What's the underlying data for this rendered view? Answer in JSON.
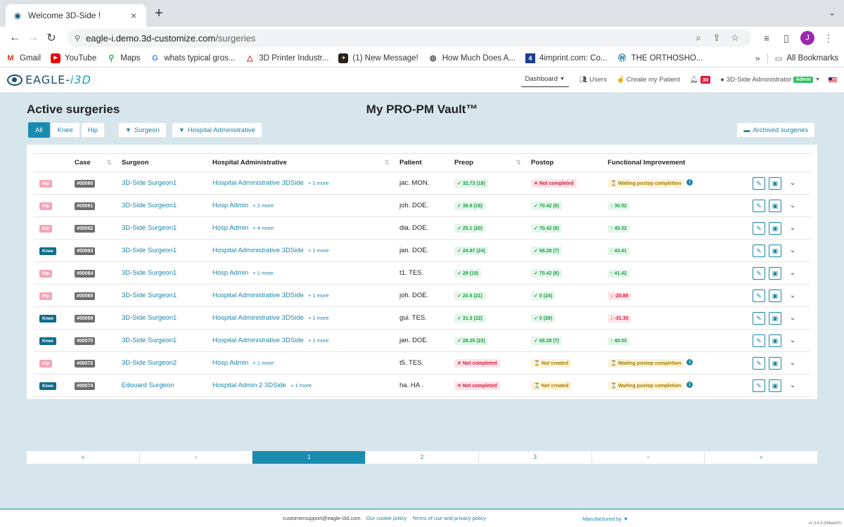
{
  "browser": {
    "tab_title": "Welcome 3D-Side !",
    "url_host": "eagle-i.demo.3d-customize.com",
    "url_path": "/surgeries",
    "profile_initial": "J",
    "bookmarks": [
      {
        "label": "Gmail",
        "icon": "gmail-icon"
      },
      {
        "label": "YouTube",
        "icon": "youtube-icon"
      },
      {
        "label": "Maps",
        "icon": "maps-icon"
      },
      {
        "label": "whats typical gros...",
        "icon": "google-icon"
      },
      {
        "label": "3D Printer Industr...",
        "icon": "printer-icon"
      },
      {
        "label": "(1) New Message!",
        "icon": "message-icon"
      },
      {
        "label": "How Much Does A...",
        "icon": "globe-icon"
      },
      {
        "label": "4imprint.com: Co...",
        "icon": "4imprint-icon"
      },
      {
        "label": "THE ORTHOSHO...",
        "icon": "wordpress-icon"
      }
    ],
    "more_bookmarks": "»",
    "all_bookmarks": "All Bookmarks"
  },
  "header": {
    "logo_text_a": "EAGLE-",
    "logo_text_b": "i3D",
    "nav": {
      "dashboard": "Dashboard",
      "users": "Users",
      "create_patient": "Create my Patient",
      "notifications": "30",
      "account": "3D-Side Administrator",
      "role": "Admin"
    }
  },
  "page": {
    "title": "Active surgeries",
    "vault_title": "My PRO-PM Vault™",
    "filters": {
      "all": "All",
      "knee": "Knee",
      "hip": "Hip",
      "surgeon": "Surgeon",
      "hospital": "Hospital Administrative"
    },
    "archived": "Archived surgeries"
  },
  "table": {
    "headers": {
      "case": "Case",
      "surgeon": "Surgeon",
      "hospital": "Hospital Administrative",
      "patient": "Patient",
      "preop": "Preop",
      "postop": "Postop",
      "improvement": "Functional Improvement"
    },
    "rows": [
      {
        "type": "Hip",
        "case": "#00060",
        "surgeon": "3D-Side Surgeon1",
        "hospital": "Hospital Administrative 3DSide",
        "more": "+ 1 more",
        "patient": "jac. MON.",
        "preop": "32.73 (18)",
        "preop_s": "ok",
        "postop": "Not completed",
        "postop_s": "bad",
        "improvement": "Waiting postop completion",
        "imp_s": "warn"
      },
      {
        "type": "Hip",
        "case": "#00061",
        "surgeon": "3D-Side Surgeon1",
        "hospital": "Hosp Admin",
        "more": "+ 2 more",
        "patient": "joh. DOE.",
        "preop": "39.9 (16)",
        "preop_s": "ok",
        "postop": "70.42 (6)",
        "postop_s": "ok",
        "improvement": "30.52",
        "imp_s": "up"
      },
      {
        "type": "Hip",
        "case": "#00062",
        "surgeon": "3D-Side Surgeon1",
        "hospital": "Hosp Admin",
        "more": "+ 4 more",
        "patient": "dia. DOE.",
        "preop": "25.1 (20)",
        "preop_s": "ok",
        "postop": "70.42 (6)",
        "postop_s": "ok",
        "improvement": "45.32",
        "imp_s": "up"
      },
      {
        "type": "Knee",
        "case": "#00063",
        "surgeon": "3D-Side Surgeon1",
        "hospital": "Hospital Administrative 3DSide",
        "more": "+ 1 more",
        "patient": "jan. DOE.",
        "preop": "24.87 (24)",
        "preop_s": "ok",
        "postop": "68.28 (7)",
        "postop_s": "ok",
        "improvement": "43.41",
        "imp_s": "up"
      },
      {
        "type": "Hip",
        "case": "#00064",
        "surgeon": "3D-Side Surgeon1",
        "hospital": "Hosp Admin",
        "more": "+ 1 more",
        "patient": "t1. TES.",
        "preop": "29 (19)",
        "preop_s": "ok",
        "postop": "70.42 (6)",
        "postop_s": "ok",
        "improvement": "41.42",
        "imp_s": "up"
      },
      {
        "type": "Hip",
        "case": "#00065",
        "surgeon": "3D-Side Surgeon1",
        "hospital": "Hospital Administrative 3DSide",
        "more": "+ 1 more",
        "patient": "joh. DOE.",
        "preop": "20.8 (21)",
        "preop_s": "ok",
        "postop": "0 (24)",
        "postop_s": "ok",
        "improvement": "-20.80",
        "imp_s": "down"
      },
      {
        "type": "Knee",
        "case": "#00069",
        "surgeon": "3D-Side Surgeon1",
        "hospital": "Hospital Administrative 3DSide",
        "more": "+ 1 more",
        "patient": "gui. TES.",
        "preop": "31.3 (22)",
        "preop_s": "ok",
        "postop": "0 (28)",
        "postop_s": "ok",
        "improvement": "-31.30",
        "imp_s": "down"
      },
      {
        "type": "Knee",
        "case": "#00070",
        "surgeon": "3D-Side Surgeon1",
        "hospital": "Hospital Administrative 3DSide",
        "more": "+ 1 more",
        "patient": "jan. DOE.",
        "preop": "28.25 (23)",
        "preop_s": "ok",
        "postop": "68.28 (7)",
        "postop_s": "ok",
        "improvement": "40.03",
        "imp_s": "up"
      },
      {
        "type": "Hip",
        "case": "#00072",
        "surgeon": "3D-Side Surgeon2",
        "hospital": "Hosp Admin",
        "more": "+ 1 more",
        "patient": "t5. TES.",
        "preop": "Not completed",
        "preop_s": "bad",
        "postop": "Not created",
        "postop_s": "warn",
        "improvement": "Waiting postop completion",
        "imp_s": "warn"
      },
      {
        "type": "Knee",
        "case": "#00074",
        "surgeon": "Edouard Surgeon",
        "hospital": "Hospital Admin 2 3DSide",
        "more": "+ 1 more",
        "patient": "ha. HA .",
        "preop": "Not completed",
        "preop_s": "bad",
        "postop": "Not created",
        "postop_s": "warn",
        "improvement": "Waiting postop completion",
        "imp_s": "warn"
      }
    ]
  },
  "pagination": [
    "«",
    "‹",
    "1",
    "2",
    "3",
    "›",
    "»"
  ],
  "pagination_active": "1",
  "footer": {
    "email": "customersupport@eagle-i3d.com",
    "cookie": "Our cookie policy",
    "terms": "Terms of use and privacy policy",
    "manufactured": "Manufactured by",
    "version": "v1.3.9-2 (60ba932)"
  }
}
